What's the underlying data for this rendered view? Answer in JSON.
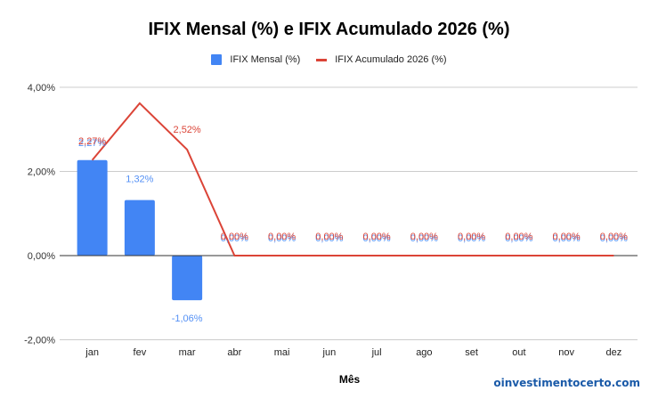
{
  "chart_data": {
    "type": "bar",
    "combo": "bar+line",
    "title": "IFIX Mensal (%) e IFIX Acumulado 2026 (%)",
    "xlabel": "Mês",
    "ylabel": "",
    "ylim": [
      -2,
      4
    ],
    "yticks": [
      "-2,00%",
      "0,00%",
      "2,00%",
      "4,00%"
    ],
    "ytick_values": [
      -2,
      0,
      2,
      4
    ],
    "grid": true,
    "legend_position": "top",
    "categories": [
      "jan",
      "fev",
      "mar",
      "abr",
      "mai",
      "jun",
      "jul",
      "ago",
      "set",
      "out",
      "nov",
      "dez"
    ],
    "series": [
      {
        "name": "IFIX Mensal (%)",
        "type": "bar",
        "color": "#4285f4",
        "values": [
          2.27,
          1.32,
          -1.06,
          0,
          0,
          0,
          0,
          0,
          0,
          0,
          0,
          0
        ],
        "labels": [
          "2,27%",
          "1,32%",
          "-1,06%",
          "0,00%",
          "0,00%",
          "0,00%",
          "0,00%",
          "0,00%",
          "0,00%",
          "0,00%",
          "0,00%",
          "0,00%"
        ]
      },
      {
        "name": "IFIX Acumulado 2026 (%)",
        "type": "line",
        "color": "#db4437",
        "values": [
          2.27,
          3.62,
          2.52,
          0,
          0,
          0,
          0,
          0,
          0,
          0,
          0,
          0
        ],
        "labels": [
          "2,27%",
          "",
          "2,52%",
          "0,00%",
          "0,00%",
          "0,00%",
          "0,00%",
          "0,00%",
          "0,00%",
          "0,00%",
          "0,00%",
          "0,00%"
        ]
      }
    ]
  },
  "legend": {
    "bar_label": "IFIX Mensal (%)",
    "line_label": "IFIX Acumulado 2026 (%)"
  },
  "watermark": "oinvestimentocerto.com"
}
